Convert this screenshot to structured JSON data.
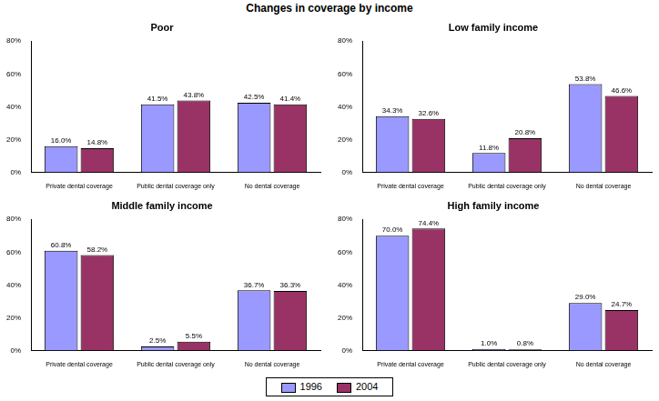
{
  "title": "Changes in coverage by income",
  "legend": "bottom",
  "chart_data": [
    {
      "type": "bar",
      "title": "Poor",
      "categories": [
        "Private dental coverage",
        "Public dental coverage only",
        "No dental coverage"
      ],
      "series": [
        {
          "name": "1996",
          "color": "#9999ff",
          "values": [
            16.0,
            41.5,
            42.5
          ],
          "value_labels": [
            "16.0%",
            "41.5%",
            "42.5%"
          ]
        },
        {
          "name": "2004",
          "color": "#993366",
          "values": [
            14.8,
            43.8,
            41.4
          ],
          "value_labels": [
            "14.8%",
            "43.8%",
            "41.4%"
          ]
        }
      ],
      "ylim": [
        0,
        80
      ],
      "yticks": [
        {
          "value": 0,
          "label": "0%"
        },
        {
          "value": 20,
          "label": "20%"
        },
        {
          "value": 40,
          "label": "40%"
        },
        {
          "value": 60,
          "label": "60%"
        },
        {
          "value": 80,
          "label": "80%"
        }
      ],
      "grid": false,
      "data_labels": true
    },
    {
      "type": "bar",
      "title": "Low family income",
      "categories": [
        "Private dental coverage",
        "Public dental coverage only",
        "No dental coverage"
      ],
      "series": [
        {
          "name": "1996",
          "color": "#9999ff",
          "values": [
            34.3,
            11.8,
            53.8
          ],
          "value_labels": [
            "34.3%",
            "11.8%",
            "53.8%"
          ]
        },
        {
          "name": "2004",
          "color": "#993366",
          "values": [
            32.6,
            20.8,
            46.6
          ],
          "value_labels": [
            "32.6%",
            "20.8%",
            "46.6%"
          ]
        }
      ],
      "ylim": [
        0,
        80
      ],
      "yticks": [
        {
          "value": 0,
          "label": "0%"
        },
        {
          "value": 20,
          "label": "20%"
        },
        {
          "value": 40,
          "label": "40%"
        },
        {
          "value": 60,
          "label": "60%"
        },
        {
          "value": 80,
          "label": "80%"
        }
      ],
      "grid": false,
      "data_labels": true
    },
    {
      "type": "bar",
      "title": "Middle family income",
      "categories": [
        "Private dental coverage",
        "Public dental coverage only",
        "No dental coverage"
      ],
      "series": [
        {
          "name": "1996",
          "color": "#9999ff",
          "values": [
            60.8,
            2.5,
            36.7
          ],
          "value_labels": [
            "60.8%",
            "2.5%",
            "36.7%"
          ]
        },
        {
          "name": "2004",
          "color": "#993366",
          "values": [
            58.2,
            5.5,
            36.3
          ],
          "value_labels": [
            "58.2%",
            "5.5%",
            "36.3%"
          ]
        }
      ],
      "ylim": [
        0,
        80
      ],
      "yticks": [
        {
          "value": 0,
          "label": "0%"
        },
        {
          "value": 20,
          "label": "20%"
        },
        {
          "value": 40,
          "label": "40%"
        },
        {
          "value": 60,
          "label": "60%"
        },
        {
          "value": 80,
          "label": "80%"
        }
      ],
      "grid": false,
      "data_labels": true
    },
    {
      "type": "bar",
      "title": "High family income",
      "categories": [
        "Private dental coverage",
        "Public dental coverage only",
        "No dental coverage"
      ],
      "series": [
        {
          "name": "1996",
          "color": "#9999ff",
          "values": [
            70.0,
            1.0,
            29.0
          ],
          "value_labels": [
            "70.0%",
            "1.0%",
            "29.0%"
          ]
        },
        {
          "name": "2004",
          "color": "#993366",
          "values": [
            74.4,
            0.8,
            24.7
          ],
          "value_labels": [
            "74.4%",
            "0.8%",
            "24.7%"
          ]
        }
      ],
      "ylim": [
        0,
        80
      ],
      "yticks": [
        {
          "value": 0,
          "label": "0%"
        },
        {
          "value": 20,
          "label": "20%"
        },
        {
          "value": 40,
          "label": "40%"
        },
        {
          "value": 60,
          "label": "60%"
        },
        {
          "value": 80,
          "label": "80%"
        }
      ],
      "grid": false,
      "data_labels": true
    }
  ]
}
